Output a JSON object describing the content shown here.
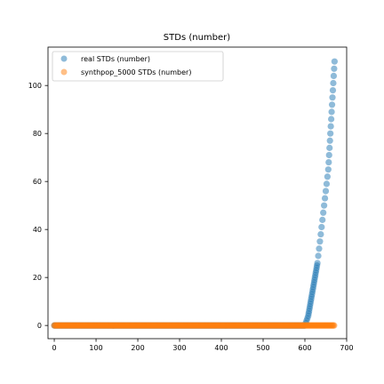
{
  "chart_data": {
    "type": "scatter",
    "title": "STDs (number)",
    "xlabel": "",
    "ylabel": "",
    "xlim": [
      -15,
      700
    ],
    "ylim": [
      -5.5,
      116
    ],
    "xticks": [
      0,
      100,
      200,
      300,
      400,
      500,
      600,
      700
    ],
    "yticks": [
      0,
      20,
      40,
      60,
      80,
      100
    ],
    "grid": false,
    "legend_position": "top-left",
    "series": [
      {
        "name": "real STDs (number)",
        "color": "#1f77b4",
        "opacity": 0.5,
        "zero_run": {
          "x_start": 0,
          "x_end": 600,
          "step": 2,
          "y": 0
        },
        "points": [
          [
            602,
            1
          ],
          [
            604,
            2
          ],
          [
            606,
            3
          ],
          [
            608,
            4
          ],
          [
            609,
            5
          ],
          [
            610,
            6
          ],
          [
            611,
            7
          ],
          [
            612,
            8
          ],
          [
            613,
            9
          ],
          [
            614,
            10
          ],
          [
            615,
            11
          ],
          [
            616,
            12
          ],
          [
            617,
            13
          ],
          [
            618,
            14
          ],
          [
            619,
            15
          ],
          [
            620,
            16
          ],
          [
            621,
            17
          ],
          [
            622,
            18
          ],
          [
            623,
            19
          ],
          [
            624,
            20
          ],
          [
            625,
            21
          ],
          [
            626,
            22
          ],
          [
            627,
            23
          ],
          [
            628,
            24
          ],
          [
            629,
            25
          ],
          [
            630,
            26
          ],
          [
            632,
            29
          ],
          [
            634,
            32
          ],
          [
            636,
            35
          ],
          [
            638,
            38
          ],
          [
            640,
            41
          ],
          [
            642,
            44
          ],
          [
            644,
            47
          ],
          [
            646,
            50
          ],
          [
            648,
            53
          ],
          [
            650,
            56
          ],
          [
            652,
            59
          ],
          [
            654,
            62
          ],
          [
            656,
            65
          ],
          [
            657,
            68
          ],
          [
            658,
            71
          ],
          [
            659,
            74
          ],
          [
            660,
            77
          ],
          [
            661,
            80
          ],
          [
            662,
            83
          ],
          [
            663,
            86
          ],
          [
            664,
            89
          ],
          [
            665,
            92
          ],
          [
            666,
            95
          ],
          [
            667,
            98
          ],
          [
            668,
            101
          ],
          [
            669,
            104
          ],
          [
            670,
            107
          ],
          [
            671,
            110
          ]
        ]
      },
      {
        "name": "synthpop_5000 STDs (number)",
        "color": "#ff7f0e",
        "opacity": 0.5,
        "zero_run": {
          "x_start": 0,
          "x_end": 670,
          "step": 2,
          "y": 0
        },
        "points": []
      }
    ]
  }
}
